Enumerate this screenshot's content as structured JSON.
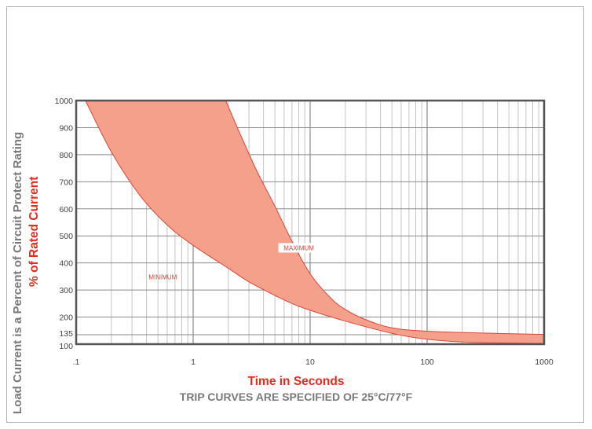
{
  "chart_data": {
    "type": "area",
    "title": "",
    "ylabel_primary": "% of Rated Current",
    "ylabel_secondary": "Load Current is a Percent of Circuit Protect Rating",
    "xlabel": "Time in Seconds",
    "note": "TRIP CURVES ARE SPECIFIED OF 25°C/77°F",
    "x_scale": "log",
    "xlim": [
      0.1,
      1000
    ],
    "ylim": [
      100,
      1000
    ],
    "x_ticks": [
      {
        "value": 0.1,
        "label": ".1"
      },
      {
        "value": 1,
        "label": "1"
      },
      {
        "value": 10,
        "label": "10"
      },
      {
        "value": 100,
        "label": "100"
      },
      {
        "value": 1000,
        "label": "1000"
      }
    ],
    "y_ticks": [
      {
        "value": 1000,
        "label": "1000"
      },
      {
        "value": 900,
        "label": "900"
      },
      {
        "value": 800,
        "label": "800"
      },
      {
        "value": 700,
        "label": "700"
      },
      {
        "value": 600,
        "label": "600"
      },
      {
        "value": 500,
        "label": "500"
      },
      {
        "value": 400,
        "label": "400"
      },
      {
        "value": 300,
        "label": "300"
      },
      {
        "value": 200,
        "label": "200"
      },
      {
        "value": 135,
        "label": "135"
      },
      {
        "value": 100,
        "label": "100"
      }
    ],
    "grid": true,
    "colors": {
      "fill": "#f5a08a",
      "curve": "#d9473a",
      "axis": "#555555",
      "grid": "#b5b5b5"
    },
    "series": [
      {
        "name": "MINIMUM",
        "points": [
          [
            0.12,
            1000
          ],
          [
            0.2,
            810
          ],
          [
            0.35,
            650
          ],
          [
            0.6,
            540
          ],
          [
            1,
            465
          ],
          [
            2,
            380
          ],
          [
            3,
            330
          ],
          [
            5,
            280
          ],
          [
            7,
            250
          ],
          [
            10,
            225
          ],
          [
            20,
            185
          ],
          [
            50,
            140
          ],
          [
            100,
            118
          ],
          [
            200,
            108
          ],
          [
            500,
            104
          ],
          [
            1000,
            102
          ]
        ]
      },
      {
        "name": "MAXIMUM",
        "points": [
          [
            1.9,
            1000
          ],
          [
            2.5,
            880
          ],
          [
            3.5,
            740
          ],
          [
            5,
            610
          ],
          [
            7,
            480
          ],
          [
            10,
            360
          ],
          [
            15,
            270
          ],
          [
            20,
            228
          ],
          [
            30,
            190
          ],
          [
            50,
            160
          ],
          [
            100,
            148
          ],
          [
            300,
            141
          ],
          [
            1000,
            136
          ]
        ]
      }
    ],
    "annotations": [
      {
        "text": "MINIMUM",
        "x": 0.55,
        "y": 340
      },
      {
        "text": "MAXIMUM",
        "x": 8,
        "y": 450
      }
    ]
  }
}
